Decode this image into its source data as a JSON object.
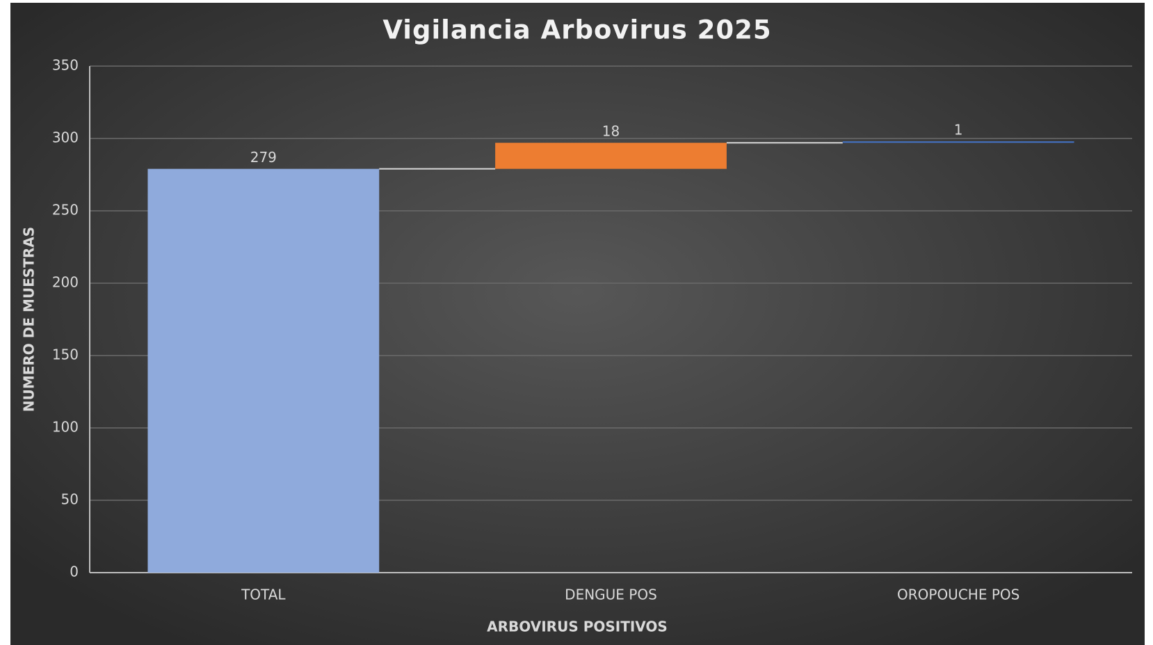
{
  "chart_data": {
    "type": "waterfall",
    "title": "Vigilancia Arbovirus 2025",
    "x_label": "ARBOVIRUS POSITIVOS",
    "y_label": "NUMERO DE MUESTRAS",
    "categories": [
      "TOTAL",
      "DENGUE POS",
      "OROPOUCHE POS"
    ],
    "values": [
      279,
      18,
      1
    ],
    "colors": [
      "#8faadc",
      "#ed7d31",
      "#4472c4"
    ],
    "ylim": [
      0,
      350
    ],
    "yticks": [
      0,
      50,
      100,
      150,
      200,
      250,
      300,
      350
    ],
    "grid": true
  }
}
